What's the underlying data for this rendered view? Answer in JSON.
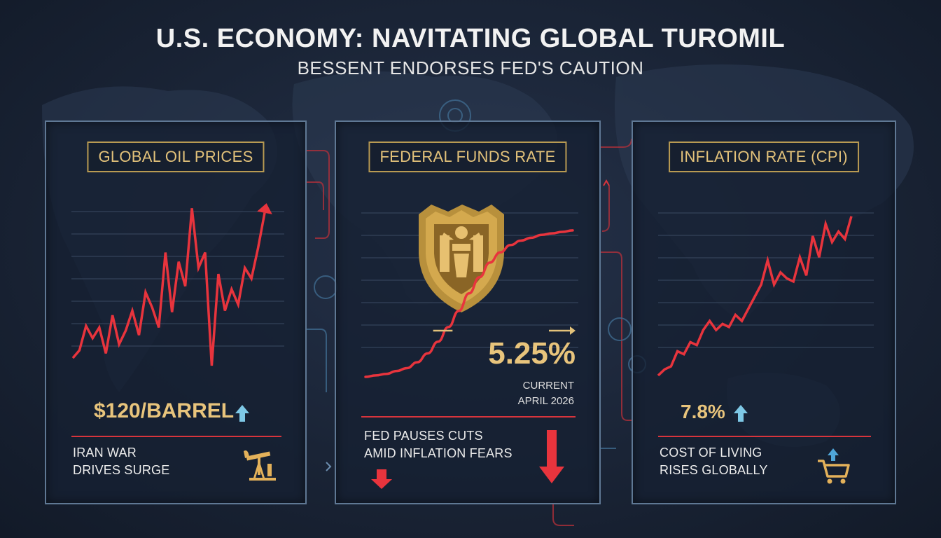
{
  "header": {
    "title": "U.S. ECONOMY: NAVITATING GLOBAL TUROMIL",
    "subtitle": "BESSENT ENDORSES FED'S CAUTION"
  },
  "colors": {
    "accent_red": "#e8343d",
    "gold": "#e3c27a",
    "arrow_blue": "#7ec8e6",
    "panel_border": "#5f7894",
    "background": "#1a2436"
  },
  "panels": {
    "oil": {
      "title": "GLOBAL OIL PRICES",
      "value": "$120/BARREL",
      "value_arrow": "up",
      "caption_line1": "IRAN WAR",
      "caption_line2": "DRIVES SURGE",
      "icon": "oil-pump-icon"
    },
    "fed": {
      "title": "FEDERAL FUNDS RATE",
      "value": "5.25%",
      "label_current": "CURRENT",
      "label_date": "APRIL 2026",
      "caption_line1": "FED PAUSES CUTS",
      "caption_line2": "AMID INFLATION FEARS",
      "icon": "eagle-shield-icon"
    },
    "cpi": {
      "title": "INFLATION RATE (CPI)",
      "value": "7.8%",
      "value_arrow": "up",
      "caption_line1": "COST OF LIVING",
      "caption_line2": "RISES GLOBALLY",
      "icon": "shopping-cart-icon"
    }
  },
  "chart_data": [
    {
      "type": "line",
      "title": "GLOBAL OIL PRICES",
      "x": [
        0,
        1,
        2,
        3,
        4,
        5,
        6,
        7,
        8,
        9,
        10,
        11,
        12,
        13,
        14,
        15,
        16,
        17,
        18,
        19,
        20,
        21,
        22,
        23,
        24,
        25,
        26,
        27,
        28,
        29
      ],
      "values": [
        0.05,
        0.1,
        0.26,
        0.18,
        0.25,
        0.08,
        0.33,
        0.14,
        0.23,
        0.36,
        0.2,
        0.48,
        0.38,
        0.25,
        0.74,
        0.35,
        0.68,
        0.52,
        1.03,
        0.64,
        0.74,
        0.0,
        0.6,
        0.36,
        0.5,
        0.4,
        0.64,
        0.57,
        0.77,
        1.0
      ],
      "end_marker": "arrow-up",
      "ylim": [
        0,
        1.1
      ]
    },
    {
      "type": "line",
      "title": "FEDERAL FUNDS RATE",
      "x": [
        0,
        1,
        2,
        3,
        4,
        5,
        6,
        7,
        8,
        9,
        10,
        11,
        12,
        13,
        14,
        15,
        16,
        17,
        18,
        19,
        20
      ],
      "values": [
        0.0,
        0.01,
        0.02,
        0.04,
        0.06,
        0.1,
        0.16,
        0.24,
        0.34,
        0.45,
        0.57,
        0.68,
        0.78,
        0.85,
        0.9,
        0.93,
        0.95,
        0.97,
        0.98,
        0.99,
        1.0
      ],
      "ylim": [
        0,
        1.1
      ]
    },
    {
      "type": "line",
      "title": "INFLATION RATE (CPI)",
      "x": [
        0,
        1,
        2,
        3,
        4,
        5,
        6,
        7,
        8,
        9,
        10,
        11,
        12,
        13,
        14,
        15,
        16,
        17,
        18,
        19,
        20,
        21,
        22,
        23,
        24,
        25,
        26,
        27,
        28,
        29,
        30
      ],
      "values": [
        0.0,
        0.04,
        0.06,
        0.16,
        0.14,
        0.22,
        0.2,
        0.3,
        0.36,
        0.3,
        0.34,
        0.32,
        0.4,
        0.36,
        0.44,
        0.52,
        0.6,
        0.76,
        0.6,
        0.68,
        0.64,
        0.62,
        0.78,
        0.66,
        0.92,
        0.78,
        1.0,
        0.88,
        0.95,
        0.9,
        1.05
      ],
      "ylim": [
        0,
        1.1
      ]
    }
  ]
}
